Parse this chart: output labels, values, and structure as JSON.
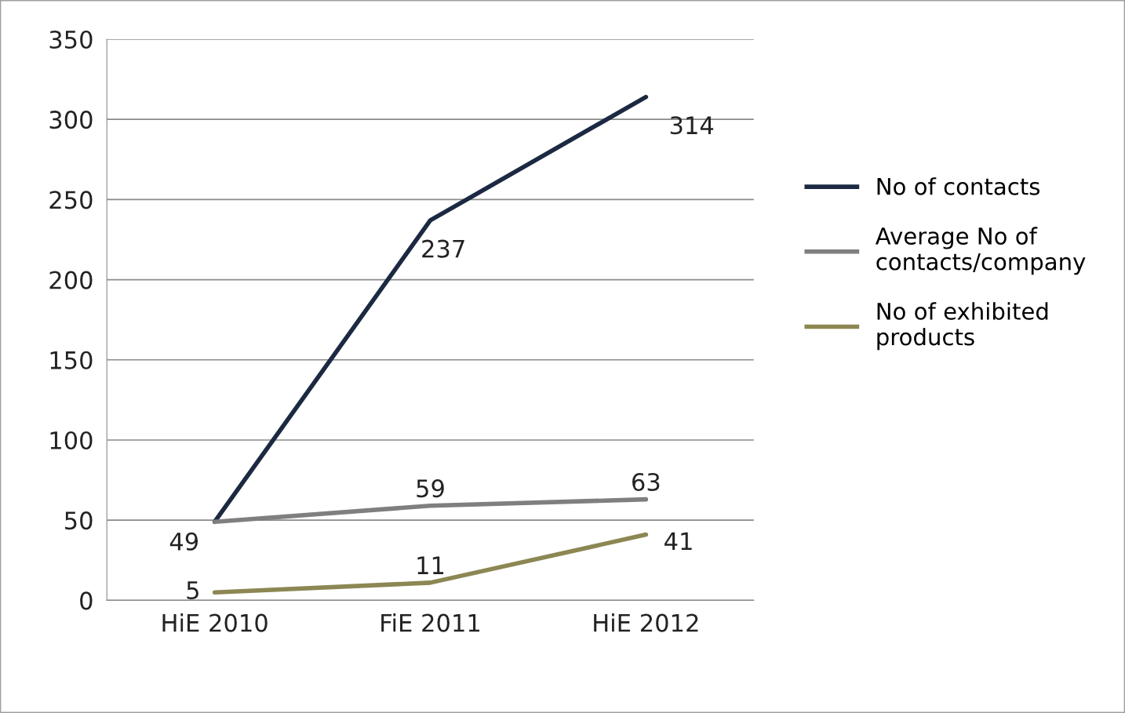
{
  "chart_data": {
    "type": "line",
    "categories": [
      "HiE 2010",
      "FiE 2011",
      "HiE 2012"
    ],
    "series": [
      {
        "name": "No of contacts",
        "color": "#1c2942",
        "values": [
          49,
          237,
          314
        ],
        "value_labels": [
          "49",
          "237",
          "314"
        ]
      },
      {
        "name": "Average No of contacts/company",
        "color": "#7f7f7f",
        "values": [
          49,
          59,
          63
        ],
        "value_labels": [
          null,
          "59",
          "63"
        ]
      },
      {
        "name": "No of exhibited products",
        "color": "#8c8753",
        "values": [
          5,
          11,
          41
        ],
        "value_labels": [
          "5",
          "11",
          "41"
        ]
      }
    ],
    "ylim": [
      0,
      350
    ],
    "yticks": [
      0,
      50,
      100,
      150,
      200,
      250,
      300,
      350
    ],
    "grid": "y",
    "legend": "right",
    "marker": "none",
    "line_style": "solid"
  }
}
